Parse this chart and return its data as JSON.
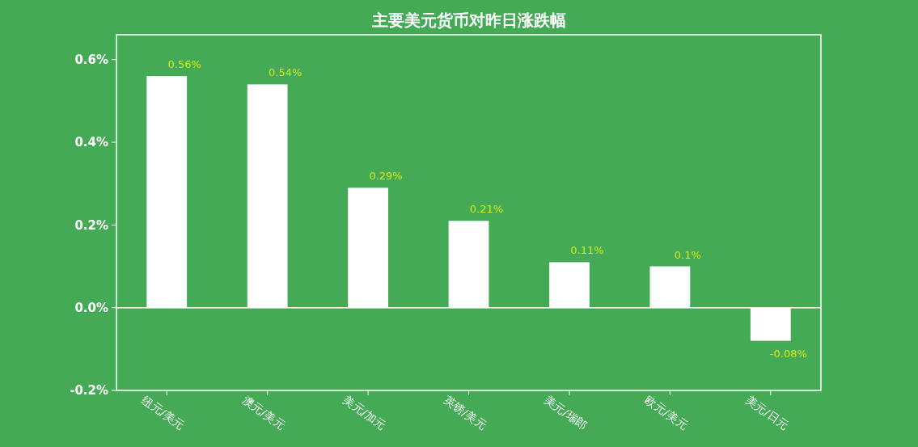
{
  "chart_data": {
    "type": "bar",
    "title": "主要美元货币对昨日涨跌幅",
    "categories": [
      "纽元/美元",
      "澳元/美元",
      "美元/加元",
      "英镑/美元",
      "美元/瑞郎",
      "欧元/美元",
      "美元/日元"
    ],
    "values": [
      0.56,
      0.54,
      0.29,
      0.21,
      0.11,
      0.1,
      -0.08
    ],
    "value_labels": [
      "0.56%",
      "0.54%",
      "0.29%",
      "0.21%",
      "0.11%",
      "0.1%",
      "-0.08%"
    ],
    "color": "#ffffff",
    "ylim": [
      -0.2,
      0.66
    ],
    "yticks": [
      {
        "value": -0.2,
        "label": "-0.2%"
      },
      {
        "value": 0,
        "label": "0.0%"
      },
      {
        "value": 0.2,
        "label": "0.2%"
      },
      {
        "value": 0.4,
        "label": "0.4%"
      },
      {
        "value": 0.6,
        "label": "0.6%"
      }
    ]
  }
}
